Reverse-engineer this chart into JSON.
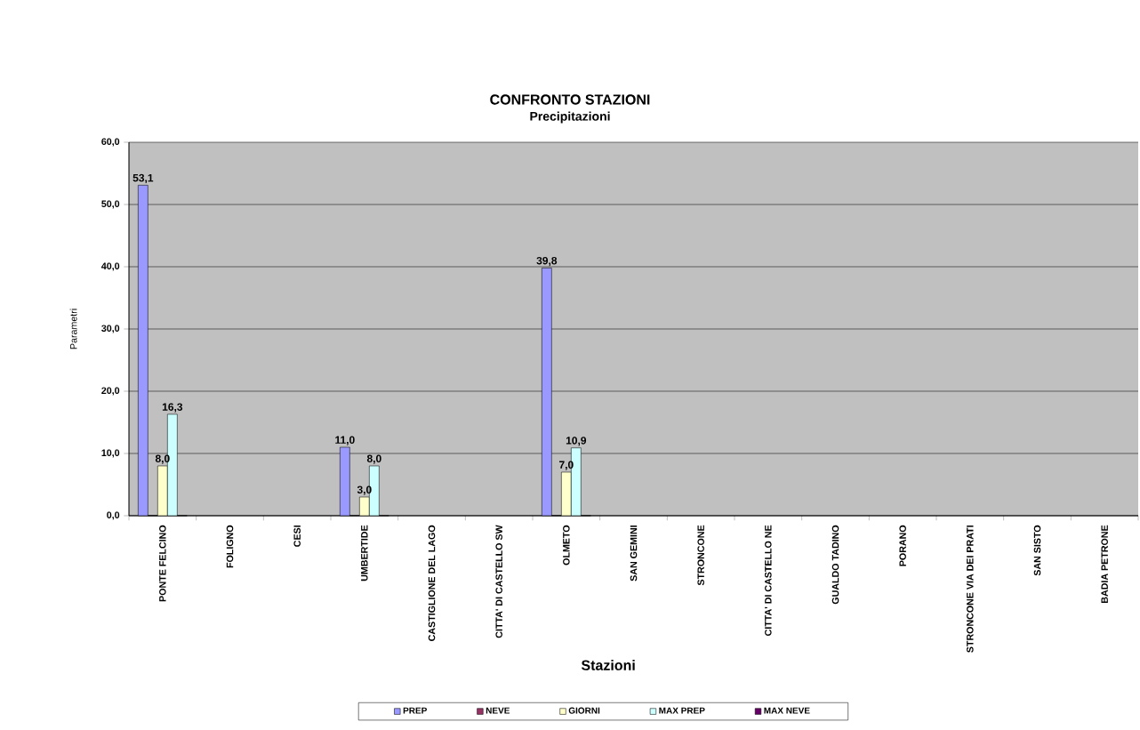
{
  "chart_data": {
    "type": "bar",
    "title": "CONFRONTO STAZIONI",
    "subtitle": "Precipitazioni",
    "xlabel": "Stazioni",
    "ylabel": "Parametri",
    "categories": [
      "PONTE FELCINO",
      "FOLIGNO",
      "CESI",
      "UMBERTIDE",
      "CASTIGLIONE DEL LAGO",
      "CITTA' DI CASTELLO SW",
      "OLMETO",
      "SAN GEMINI",
      "STRONCONE",
      "CITTA' DI CASTELLO NE",
      "GUALDO TADINO",
      "PORANO",
      "STRONCONE VIA DEI PRATI",
      "SAN SISTO",
      "BADIA PETRONE"
    ],
    "series": [
      {
        "name": "PREP",
        "color": "#9999ff",
        "values": [
          53.1,
          null,
          null,
          11.0,
          null,
          null,
          39.8,
          null,
          null,
          null,
          null,
          null,
          null,
          null,
          null
        ],
        "value_labels": [
          "53,1",
          null,
          null,
          "11,0",
          null,
          null,
          "39,8",
          null,
          null,
          null,
          null,
          null,
          null,
          null,
          null
        ]
      },
      {
        "name": "NEVE",
        "color": "#993366",
        "values": [
          0,
          null,
          null,
          0,
          null,
          null,
          0,
          null,
          null,
          null,
          null,
          null,
          null,
          null,
          null
        ]
      },
      {
        "name": "GIORNI",
        "color": "#ffffcc",
        "values": [
          8.0,
          null,
          null,
          3.0,
          null,
          null,
          7.0,
          null,
          null,
          null,
          null,
          null,
          null,
          null,
          null
        ],
        "value_labels": [
          "8,0",
          null,
          null,
          "3,0",
          null,
          null,
          "7,0",
          null,
          null,
          null,
          null,
          null,
          null,
          null,
          null
        ]
      },
      {
        "name": "MAX PREP",
        "color": "#ccffff",
        "values": [
          16.3,
          null,
          null,
          8.0,
          null,
          null,
          10.9,
          null,
          null,
          null,
          null,
          null,
          null,
          null,
          null
        ],
        "value_labels": [
          "16,3",
          null,
          null,
          "8,0",
          null,
          null,
          "10,9",
          null,
          null,
          null,
          null,
          null,
          null,
          null,
          null
        ]
      },
      {
        "name": "MAX NEVE",
        "color": "#660066",
        "values": [
          0,
          null,
          null,
          0,
          null,
          null,
          0,
          null,
          null,
          null,
          null,
          null,
          null,
          null,
          null
        ]
      }
    ],
    "ylim": [
      0,
      60
    ],
    "yticks": [
      {
        "value": 0,
        "label": "0,0"
      },
      {
        "value": 10,
        "label": "10,0"
      },
      {
        "value": 20,
        "label": "20,0"
      },
      {
        "value": 30,
        "label": "30,0"
      },
      {
        "value": 40,
        "label": "40,0"
      },
      {
        "value": 50,
        "label": "50,0"
      },
      {
        "value": 60,
        "label": "60,0"
      }
    ],
    "grid": "y",
    "legend": "bottom"
  }
}
